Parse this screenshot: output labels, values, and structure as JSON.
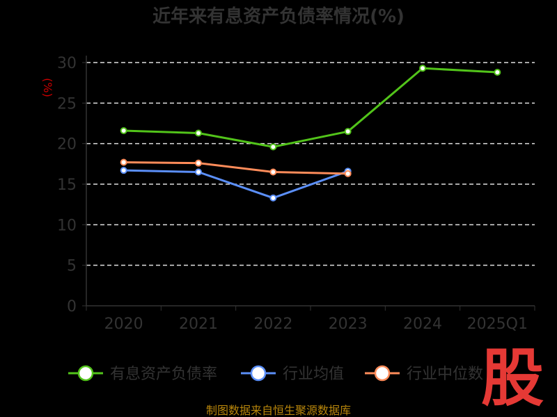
{
  "chart_data": {
    "type": "line",
    "title": "近年来有息资产负债率情况(%)",
    "ylabel": "(%)",
    "categories": [
      "2020",
      "2021",
      "2022",
      "2023",
      "2024",
      "2025Q1"
    ],
    "ylim": [
      0,
      30
    ],
    "yticks": [
      0,
      5,
      10,
      15,
      20,
      25,
      30
    ],
    "grid": true,
    "legend_position": "bottom",
    "series": [
      {
        "name": "有息资产负债率",
        "color": "#52c41a",
        "values": [
          21.6,
          21.3,
          19.6,
          21.5,
          29.3,
          28.8
        ]
      },
      {
        "name": "行业均值",
        "color": "#5b8ff9",
        "values": [
          16.7,
          16.5,
          13.3,
          16.6,
          null,
          null
        ]
      },
      {
        "name": "行业中位数",
        "color": "#ff8c5a",
        "values": [
          17.7,
          17.6,
          16.5,
          16.3,
          null,
          null
        ]
      }
    ]
  },
  "footer": "制图数据来自恒生聚源数据库",
  "watermark": "股"
}
